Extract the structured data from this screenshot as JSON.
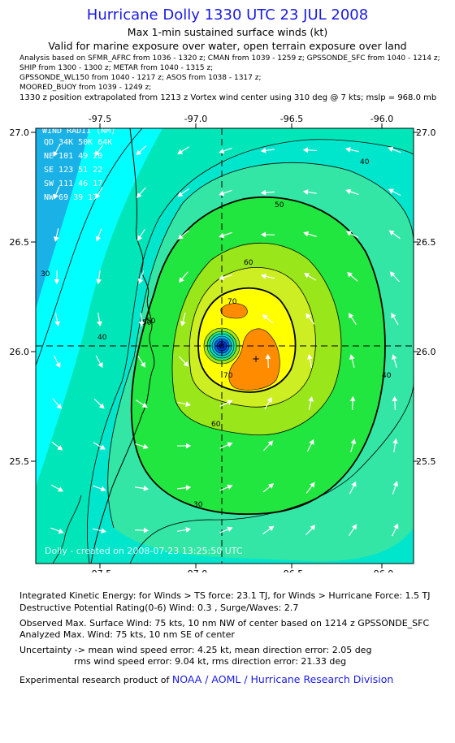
{
  "header": {
    "title": "Hurricane Dolly 1330 UTC 23 JUL 2008",
    "subtitle": "Max 1-min sustained surface winds (kt)",
    "validity": "Valid for marine exposure over water, open terrain exposure over land",
    "analysis_lines": [
      "Analysis based on  SFMR_AFRC from 1036 - 1320 z;  CMAN from 1039 - 1259 z;  GPSSONDE_SFC from 1040 - 1214 z;",
      "SHIP from 1300 - 1300 z;  METAR from 1040 - 1315 z;",
      "GPSSONDE_WL150 from 1040 - 1217 z;  ASOS from 1038 - 1317 z;",
      "MOORED_BUOY from 1039 - 1249 z;"
    ],
    "position_line": "1330 z position extrapolated from 1213 z Vortex wind center using 310 deg @ 7 kts; mslp = 968.0 mb"
  },
  "wind_radii_table": {
    "header": "WIND RADII (NM)",
    "columns": [
      "QD",
      "34K",
      "50K",
      "64K"
    ],
    "rows": [
      [
        "NE",
        "101",
        "49",
        "20"
      ],
      [
        "SE",
        "123",
        "51",
        "22"
      ],
      [
        "SW",
        "111",
        "46",
        "17"
      ],
      [
        "NW",
        "69",
        "39",
        "17"
      ]
    ]
  },
  "credit": "Dolly - created on 2008-07-23 13:25:50 UTC",
  "footer": {
    "ike": "Integrated Kinetic Energy:  for Winds > TS force: 23.1 TJ,  for Winds > Hurricane Force: 1.5 TJ",
    "dpr": "Destructive Potential Rating(0-6)   Wind: 0.3 , Surge/Waves: 2.7",
    "observed": "Observed Max. Surface Wind: 75 kts, 10 nm NW of center based on 1214 z GPSSONDE_SFC",
    "analyzed": "Analyzed Max. Wind: 75 kts, 10 nm SE of center",
    "uncertainty1": "Uncertainty -> mean wind speed error: 4.25 kt,   mean direction error: 2.05 deg",
    "uncertainty2": "rms wind speed error: 9.04 kt,   rms direction error: 21.33 deg",
    "experimental_prefix": "Experimental research product of",
    "experimental_org": "NOAA / AOML / Hurricane Research Division"
  },
  "colors": {
    "title": "#1a1ae6",
    "cyan": "#00ffff",
    "aqua": "#00e6cc",
    "teal": "#33d9a6",
    "green_light": "#33e680",
    "green": "#19e64d",
    "lime": "#99e61a",
    "yellow_green": "#cce619",
    "yellow": "#ffff00",
    "orange": "#ff8c00",
    "land": "#1ab2e6",
    "eye": "#0033cc"
  },
  "chart_data": {
    "type": "contour_map",
    "x_ticks": [
      "-97.5",
      "-97.0",
      "-96.5",
      "-96.0"
    ],
    "y_ticks": [
      "27.0",
      "26.5",
      "26.0",
      "25.5"
    ],
    "xlim": [
      -97.85,
      -95.85
    ],
    "ylim": [
      25.05,
      27.05
    ],
    "contour_levels_kt": [
      30,
      40,
      50,
      60,
      70
    ],
    "contour_labels": [
      "30",
      "40",
      "50",
      "60",
      "70",
      "40",
      "50",
      "60",
      "70",
      "30",
      "40",
      "50"
    ],
    "center": {
      "lon": -96.82,
      "lat": 26.03
    },
    "max_wind_kt": 75,
    "max_wind_location": {
      "lon": -96.7,
      "lat": 25.96
    }
  }
}
